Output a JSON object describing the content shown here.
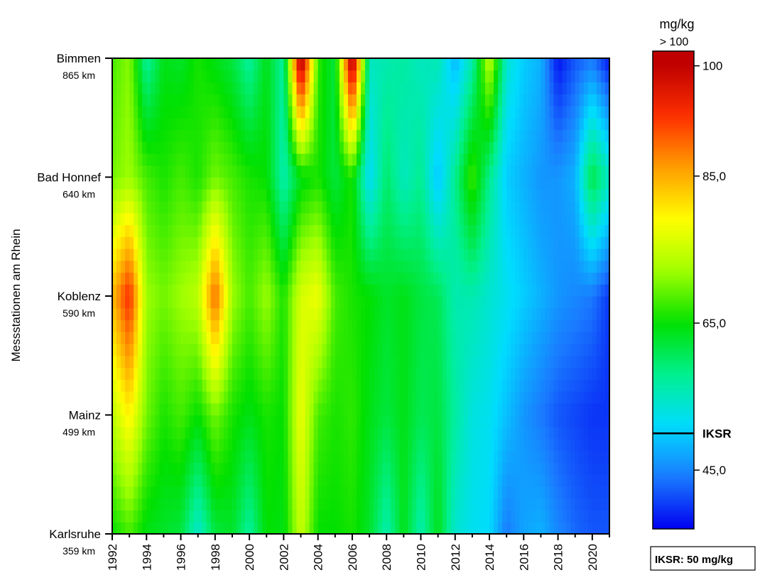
{
  "chart_data": {
    "type": "heatmap",
    "ylabel": "Messstationen am Rhein",
    "stations": [
      {
        "name": "Karlsruhe",
        "km": "359 km",
        "km_value": 359
      },
      {
        "name": "Mainz",
        "km": "499 km",
        "km_value": 499
      },
      {
        "name": "Koblenz",
        "km": "590 km",
        "km_value": 590
      },
      {
        "name": "Bad Honnef",
        "km": "640 km",
        "km_value": 640
      },
      {
        "name": "Bimmen",
        "km": "865 km",
        "km_value": 865
      }
    ],
    "x_tick_labels": [
      "1992",
      "1994",
      "1996",
      "1998",
      "2000",
      "2002",
      "2004",
      "2006",
      "2008",
      "2010",
      "2012",
      "2014",
      "2016",
      "2018",
      "2020"
    ],
    "xlim": [
      1992,
      2021
    ],
    "years": [
      1992,
      1993,
      1994,
      1995,
      1996,
      1997,
      1998,
      1999,
      2000,
      2001,
      2002,
      2003,
      2004,
      2005,
      2006,
      2007,
      2008,
      2009,
      2010,
      2011,
      2012,
      2013,
      2014,
      2015,
      2016,
      2017,
      2018,
      2019,
      2020,
      2021
    ],
    "values_by_station": {
      "Karlsruhe": [
        65,
        68,
        64,
        63,
        62,
        54,
        62,
        63,
        57,
        65,
        64,
        75,
        65,
        65,
        66,
        63,
        56,
        64,
        56,
        64,
        54,
        52,
        51,
        44,
        47,
        48,
        45,
        43,
        42,
        42
      ],
      "Mainz": [
        74,
        80,
        70,
        66,
        68,
        65,
        70,
        66,
        64,
        66,
        65,
        78,
        68,
        66,
        67,
        64,
        62,
        64,
        61,
        62,
        57,
        53,
        52,
        49,
        46,
        44,
        42,
        41,
        40,
        40
      ],
      "Koblenz": [
        84,
        94,
        72,
        70,
        72,
        74,
        90,
        72,
        68,
        72,
        66,
        76,
        78,
        68,
        66,
        65,
        63,
        64,
        62,
        61,
        56,
        56,
        54,
        52,
        50,
        48,
        46,
        45,
        44,
        40
      ],
      "Bad Honnef": [
        70,
        72,
        68,
        66,
        68,
        66,
        70,
        68,
        66,
        65,
        56,
        64,
        66,
        62,
        66,
        51,
        60,
        55,
        58,
        49,
        58,
        68,
        58,
        50,
        48,
        46,
        46,
        48,
        62,
        55
      ],
      "Bimmen": [
        68,
        71,
        57,
        64,
        63,
        66,
        64,
        62,
        57,
        64,
        57,
        104,
        67,
        62,
        104,
        55,
        56,
        57,
        55,
        56,
        48,
        56,
        75,
        54,
        50,
        48,
        38,
        42,
        44,
        38
      ]
    },
    "colorbar": {
      "unit": "mg/kg",
      "over_label": "> 100",
      "ticks": [
        {
          "value": 100,
          "label": "100"
        },
        {
          "value": 85,
          "label": "85,0"
        },
        {
          "value": 65,
          "label": "65,0"
        },
        {
          "value": 45,
          "label": "45,0"
        }
      ],
      "range": [
        37,
        102
      ],
      "reference_line": {
        "value": 50,
        "label": "IKSR"
      }
    },
    "note": "IKSR: 50 mg/kg",
    "colors": {
      "scale": [
        "#0000f0",
        "#1a7aff",
        "#00dcff",
        "#00f090",
        "#00e000",
        "#a0ff00",
        "#ffff00",
        "#ffa000",
        "#ff3000",
        "#c00000"
      ],
      "over": "#c00000"
    }
  }
}
